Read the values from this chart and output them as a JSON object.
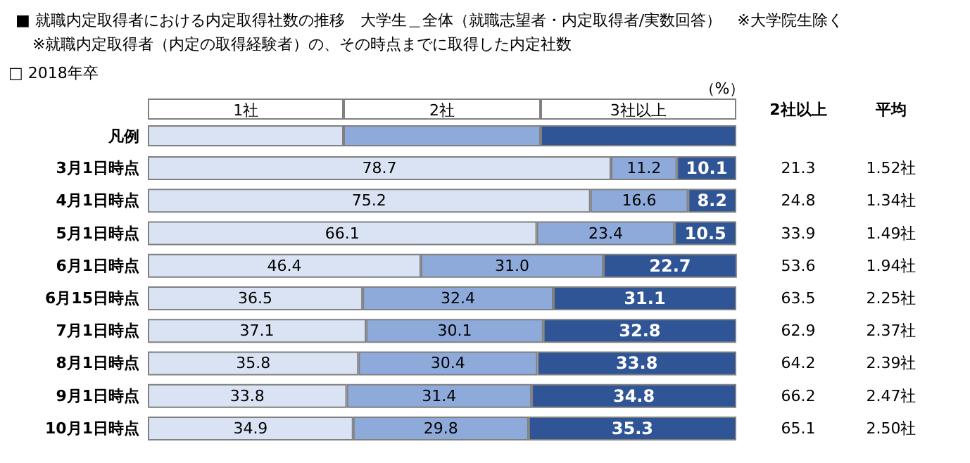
{
  "chart_data": {
    "type": "bar",
    "orientation": "horizontal",
    "stacked": true,
    "title": "■ 就職内定取得者における内定取得社数の推移　大学生＿全体（就職志望者・内定取得者/実数回答）　※大学院生除く",
    "subtitle": "※就職内定取得者（内定の取得経験者）の、その時点までに取得した内定社数",
    "xlabel": "（%）",
    "legend_title": "凡例",
    "legend": "top",
    "tick_labels": "y",
    "xlim": [
      0,
      100
    ],
    "categories": [
      "3月1日時点",
      "4月1日時点",
      "5月1日時点",
      "6月1日時点",
      "6月15日時点",
      "7月1日時点",
      "8月1日時点",
      "9月1日時点",
      "10月1日時点"
    ],
    "series": [
      {
        "name": "1社",
        "color": "#dae3f3",
        "values": [
          78.7,
          75.2,
          66.1,
          46.4,
          36.5,
          37.1,
          35.8,
          33.8,
          34.9
        ],
        "value_labels": [
          "78.7",
          "75.2",
          "66.1",
          "46.4",
          "36.5",
          "37.1",
          "35.8",
          "33.8",
          "34.9"
        ]
      },
      {
        "name": "2社",
        "color": "#8eaadb",
        "values": [
          11.2,
          16.6,
          23.4,
          31.0,
          32.4,
          30.1,
          30.4,
          31.4,
          29.8
        ],
        "value_labels": [
          "11.2",
          "16.6",
          "23.4",
          "31.0",
          "32.4",
          "30.1",
          "30.4",
          "31.4",
          "29.8"
        ]
      },
      {
        "name": "3社以上",
        "color": "#2f5597",
        "values": [
          10.1,
          8.2,
          10.5,
          22.7,
          31.1,
          32.8,
          33.8,
          34.8,
          35.3
        ],
        "value_labels": [
          "10.1",
          "8.2",
          "10.5",
          "22.7",
          "31.1",
          "32.8",
          "33.8",
          "34.8",
          "35.3"
        ]
      }
    ],
    "annotations": [
      "□ 2018年卒",
      "2社以上",
      "21.3",
      "24.8",
      "33.9",
      "53.6",
      "63.5",
      "62.9",
      "64.2",
      "66.2",
      "65.1",
      "平均",
      "1.52社",
      "1.34社",
      "1.49社",
      "1.94社",
      "2.25社",
      "2.37社",
      "2.39社",
      "2.47社",
      "2.50社"
    ]
  }
}
